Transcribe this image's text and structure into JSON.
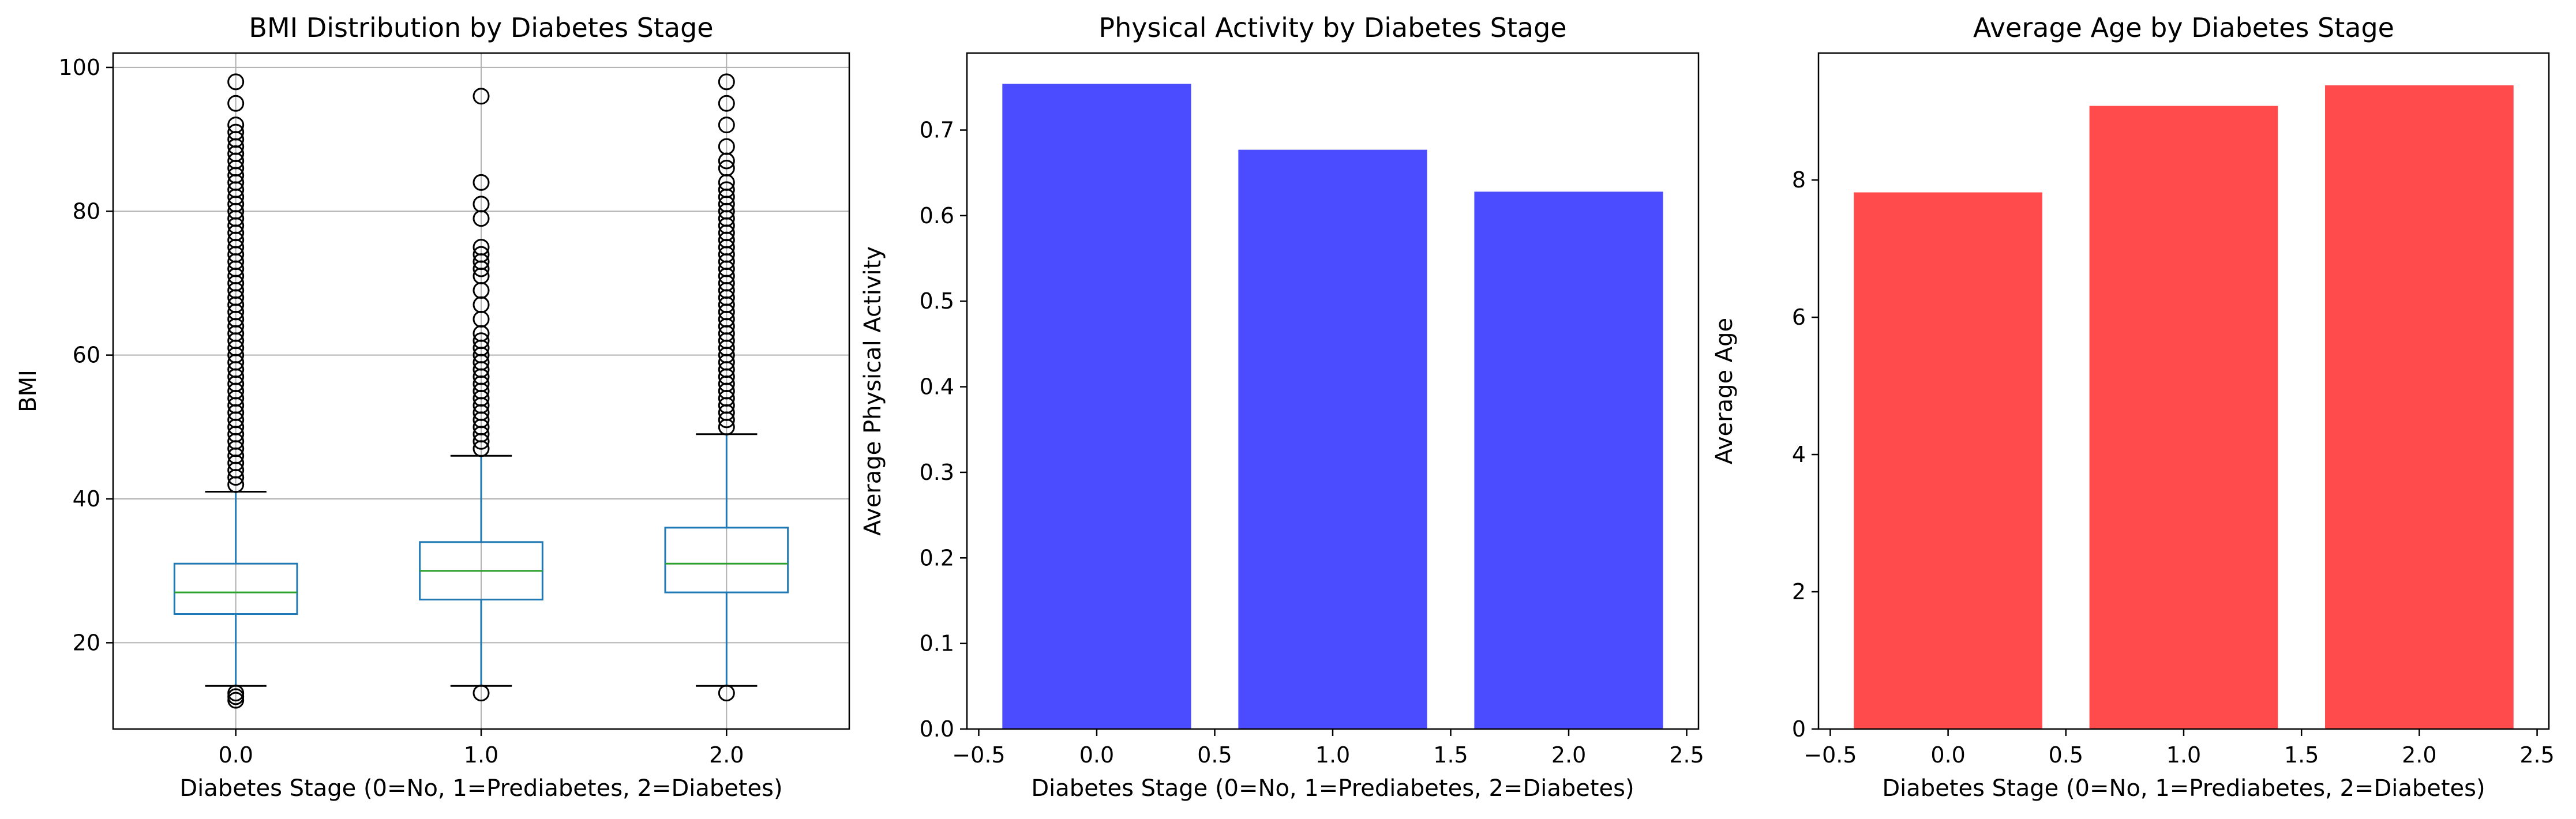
{
  "chart_data": [
    {
      "type": "box",
      "title": "BMI Distribution by Diabetes Stage",
      "xlabel": "Diabetes Stage (0=No, 1=Prediabetes, 2=Diabetes)",
      "ylabel": "BMI",
      "categories": [
        "0.0",
        "1.0",
        "2.0"
      ],
      "ylim": [
        8,
        102
      ],
      "yticks": [
        20,
        40,
        60,
        80,
        100
      ],
      "grid": true,
      "colors": {
        "box": "#1f77b4",
        "median": "#2ca02c",
        "flier": "#000000"
      },
      "boxes": [
        {
          "category": "0.0",
          "whisker_low": 14,
          "q1": 24,
          "median": 27,
          "q3": 31,
          "whisker_high": 41,
          "fliers": [
            12,
            12.5,
            13,
            42,
            43,
            44,
            45,
            46,
            47,
            48,
            49,
            50,
            51,
            52,
            53,
            54,
            55,
            56,
            57,
            58,
            59,
            60,
            61,
            62,
            63,
            64,
            65,
            66,
            67,
            68,
            69,
            70,
            71,
            72,
            73,
            74,
            75,
            76,
            77,
            78,
            79,
            80,
            81,
            82,
            83,
            84,
            85,
            86,
            87,
            88,
            89,
            90,
            91,
            92,
            95,
            98
          ]
        },
        {
          "category": "1.0",
          "whisker_low": 14,
          "q1": 26,
          "median": 30,
          "q3": 34,
          "whisker_high": 46,
          "fliers": [
            13,
            47,
            48,
            49,
            50,
            51,
            52,
            53,
            54,
            55,
            56,
            57,
            58,
            59,
            60,
            61,
            62,
            63,
            65,
            67,
            69,
            71,
            72,
            73,
            74,
            75,
            79,
            81,
            84,
            96
          ]
        },
        {
          "category": "2.0",
          "whisker_low": 14,
          "q1": 27,
          "median": 31,
          "q3": 36,
          "whisker_high": 49,
          "fliers": [
            13,
            50,
            51,
            52,
            53,
            54,
            55,
            56,
            57,
            58,
            59,
            60,
            61,
            62,
            63,
            64,
            65,
            66,
            67,
            68,
            69,
            70,
            71,
            72,
            73,
            74,
            75,
            76,
            77,
            78,
            79,
            80,
            81,
            82,
            83,
            84,
            86,
            87,
            89,
            92,
            95,
            98
          ]
        }
      ]
    },
    {
      "type": "bar",
      "title": "Physical Activity by Diabetes Stage",
      "xlabel": "Diabetes Stage (0=No, 1=Prediabetes, 2=Diabetes)",
      "ylabel": "Average Physical Activity",
      "x": [
        0,
        1,
        2
      ],
      "values": [
        0.754,
        0.677,
        0.628
      ],
      "bar_width": 0.8,
      "xlim": [
        -0.55,
        2.55
      ],
      "xticks": [
        -0.5,
        0.0,
        0.5,
        1.0,
        1.5,
        2.0,
        2.5
      ],
      "ylim": [
        0,
        0.79
      ],
      "yticks": [
        0.0,
        0.1,
        0.2,
        0.3,
        0.4,
        0.5,
        0.6,
        0.7
      ],
      "grid": false,
      "color": "#4b4bff"
    },
    {
      "type": "bar",
      "title": "Average Age by Diabetes Stage",
      "xlabel": "Diabetes Stage (0=No, 1=Prediabetes, 2=Diabetes)",
      "ylabel": "Average Age",
      "x": [
        0,
        1,
        2
      ],
      "values": [
        7.82,
        9.08,
        9.38
      ],
      "bar_width": 0.8,
      "xlim": [
        -0.55,
        2.55
      ],
      "xticks": [
        -0.5,
        0.0,
        0.5,
        1.0,
        1.5,
        2.0,
        2.5
      ],
      "ylim": [
        0,
        9.85
      ],
      "yticks": [
        0,
        2,
        4,
        6,
        8
      ],
      "grid": false,
      "color": "#ff4b4b"
    }
  ]
}
